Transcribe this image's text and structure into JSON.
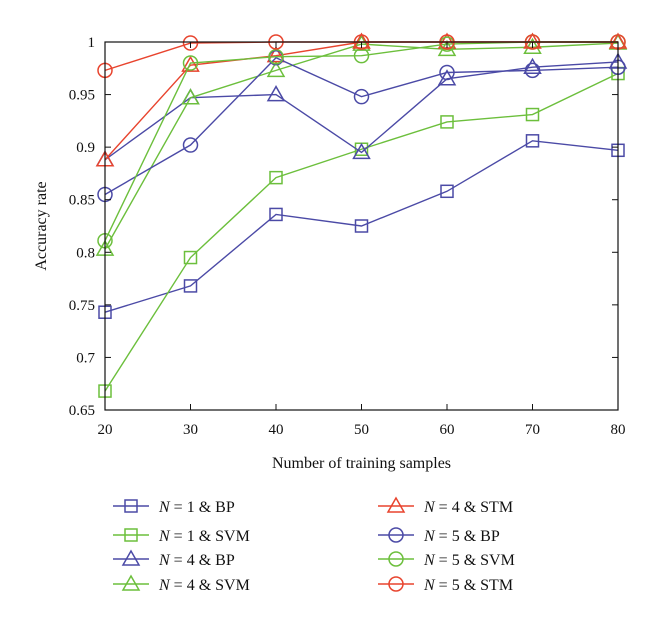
{
  "chart_data": {
    "type": "line",
    "title": "",
    "xlabel": "Number of training samples",
    "ylabel": "Accuracy rate",
    "x": [
      20,
      30,
      40,
      50,
      60,
      70,
      80
    ],
    "xlim": [
      20,
      80
    ],
    "ylim": [
      0.65,
      1.0
    ],
    "x_ticks": [
      "20",
      "30",
      "40",
      "50",
      "60",
      "70",
      "80"
    ],
    "y_ticks": [
      "0.65",
      "0.7",
      "0.75",
      "0.8",
      "0.85",
      "0.9",
      "0.95",
      "1"
    ],
    "grid": false,
    "legend_position": "below",
    "series": [
      {
        "name": "N = 1 & BP",
        "var": "N",
        "rest": " = 1 & BP",
        "color": "#4b4aa6",
        "marker": "square",
        "values": [
          0.743,
          0.768,
          0.836,
          0.825,
          0.858,
          0.906,
          0.897
        ]
      },
      {
        "name": "N = 1 & SVM",
        "var": "N",
        "rest": " = 1 & SVM",
        "color": "#6cbf3c",
        "marker": "square",
        "values": [
          0.668,
          0.795,
          0.871,
          0.898,
          0.924,
          0.931,
          0.97
        ]
      },
      {
        "name": "N = 4 & BP",
        "var": "N",
        "rest": " = 4 & BP",
        "color": "#4b4aa6",
        "marker": "triangle",
        "values": [
          0.888,
          0.947,
          0.95,
          0.895,
          0.965,
          0.976,
          0.981
        ]
      },
      {
        "name": "N = 4 & SVM",
        "var": "N",
        "rest": " = 4 & SVM",
        "color": "#6cbf3c",
        "marker": "triangle",
        "values": [
          0.803,
          0.947,
          0.973,
          0.998,
          0.993,
          0.995,
          0.999
        ]
      },
      {
        "name": "N = 4 & STM",
        "var": "N",
        "rest": " = 4 & STM",
        "color": "#e8442e",
        "marker": "triangle",
        "values": [
          0.888,
          0.978,
          0.987,
          1.0,
          1.0,
          1.0,
          1.0
        ]
      },
      {
        "name": "N = 5 & BP",
        "var": "N",
        "rest": " = 5 & BP",
        "color": "#4b4aa6",
        "marker": "circle",
        "values": [
          0.855,
          0.902,
          0.985,
          0.948,
          0.971,
          0.973,
          0.976
        ]
      },
      {
        "name": "N = 5 & SVM",
        "var": "N",
        "rest": " = 5 & SVM",
        "color": "#6cbf3c",
        "marker": "circle",
        "values": [
          0.811,
          0.98,
          0.986,
          0.987,
          0.998,
          1.0,
          1.0
        ]
      },
      {
        "name": "N = 5 & STM",
        "var": "N",
        "rest": " = 5 & STM",
        "color": "#e8442e",
        "marker": "circle",
        "values": [
          0.973,
          0.999,
          1.0,
          1.0,
          1.0,
          1.0,
          1.0
        ]
      }
    ]
  }
}
